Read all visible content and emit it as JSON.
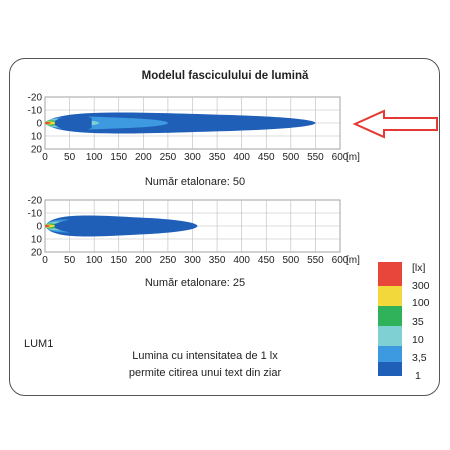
{
  "title": "Modelul fasciculului de lumină",
  "calibration_1": "Număr etalonare: 50",
  "calibration_2": "Număr etalonare: 25",
  "model_code": "LUM1",
  "footnote_line1": "Lumina cu intensitatea de 1 lx",
  "footnote_line2": "permite citirea unui text din ziar",
  "colors": {
    "l1": "#1f5fb8",
    "l3_5": "#3d9ae0",
    "l10": "#7fd0d2",
    "l35": "#2fb25a",
    "l100": "#f2d83a",
    "l300": "#e8463a",
    "arrow": "#e53935"
  },
  "arrow_icon": "left-arrow-outline",
  "chart_data": [
    {
      "type": "heatmap",
      "x_ticks": [
        "0",
        "50",
        "100",
        "150",
        "200",
        "250",
        "300",
        "350",
        "400",
        "450",
        "500",
        "550",
        "600"
      ],
      "x_unit": "[m]",
      "y_ticks": [
        "-20",
        "-10",
        "0",
        "10",
        "20"
      ],
      "xlim": [
        0,
        600
      ],
      "ylim": [
        -20,
        20
      ],
      "beam_reach": {
        "l1": 550,
        "l3_5": 250,
        "l10": 110,
        "l35": 45,
        "l100": 25,
        "l300": 12
      }
    },
    {
      "type": "heatmap",
      "x_ticks": [
        "0",
        "50",
        "100",
        "150",
        "200",
        "250",
        "300",
        "350",
        "400",
        "450",
        "500",
        "550",
        "600"
      ],
      "x_unit": "[m]",
      "y_ticks": [
        "-20",
        "-10",
        "0",
        "10",
        "20"
      ],
      "xlim": [
        0,
        600
      ],
      "ylim": [
        -20,
        20
      ],
      "beam_reach": {
        "l1": 310,
        "l3_5": 160,
        "l10": 90,
        "l35": 35,
        "l100": 20,
        "l300": 10
      }
    }
  ],
  "legend": {
    "unit": "[lx]",
    "levels": [
      "300",
      "100",
      "35",
      "10",
      "3,5",
      "1"
    ]
  }
}
